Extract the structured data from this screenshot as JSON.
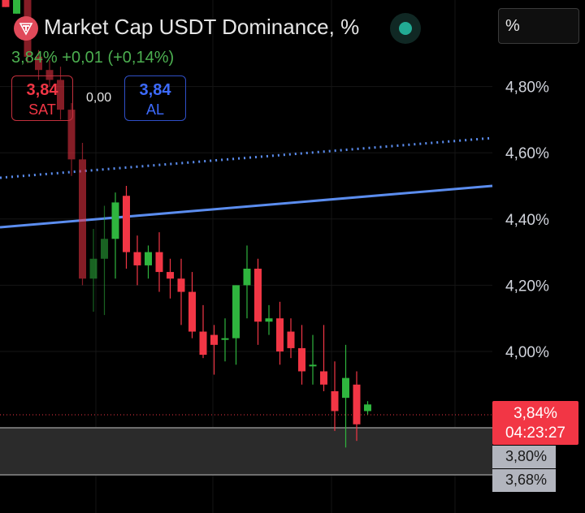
{
  "header": {
    "title": "Market Cap USDT Dominance, %",
    "last": "3,84%",
    "change": "+0,01",
    "change_pct": "(+0,14%)",
    "status_color": "#22ab94"
  },
  "trade": {
    "sell_value": "3,84",
    "sell_label": "SAT",
    "spread": "0,00",
    "buy_value": "3,84",
    "buy_label": "AL"
  },
  "axis": {
    "unit": "%"
  },
  "price_tag": {
    "value": "3,84%",
    "countdown": "04:23:27"
  },
  "range_tags": {
    "high": "3,80%",
    "low": "3,68%"
  },
  "chart_data": {
    "type": "candlestick",
    "y_ticks": [
      {
        "value": 4.8,
        "label": "4,80%"
      },
      {
        "value": 4.6,
        "label": "4,60%"
      },
      {
        "value": 4.4,
        "label": "4,40%"
      },
      {
        "value": 4.2,
        "label": "4,20%"
      },
      {
        "value": 4.0,
        "label": "4,00%"
      }
    ],
    "colors": {
      "up": "#2fb53e",
      "down": "#f23645",
      "trend": "#5b8def"
    },
    "current_price": 3.84,
    "highlight_zone": [
      3.68,
      3.8
    ],
    "candles": [
      {
        "o": 5.07,
        "h": 5.07,
        "l": 5.04,
        "c": 5.04
      },
      {
        "o": 5.02,
        "h": 5.07,
        "l": 5.02,
        "c": 5.07
      },
      {
        "o": 5.07,
        "h": 5.07,
        "l": 4.87,
        "c": 4.89
      },
      {
        "o": 4.89,
        "h": 4.91,
        "l": 4.82,
        "c": 4.85
      },
      {
        "o": 4.85,
        "h": 4.88,
        "l": 4.8,
        "c": 4.82
      },
      {
        "o": 4.82,
        "h": 4.86,
        "l": 4.7,
        "c": 4.73
      },
      {
        "o": 4.73,
        "h": 4.75,
        "l": 4.53,
        "c": 4.58
      },
      {
        "o": 4.58,
        "h": 4.63,
        "l": 4.2,
        "c": 4.22
      },
      {
        "o": 4.22,
        "h": 4.37,
        "l": 4.12,
        "c": 4.28
      },
      {
        "o": 4.28,
        "h": 4.44,
        "l": 4.11,
        "c": 4.34
      },
      {
        "o": 4.34,
        "h": 4.48,
        "l": 4.22,
        "c": 4.45
      },
      {
        "o": 4.47,
        "h": 4.5,
        "l": 4.25,
        "c": 4.3
      },
      {
        "o": 4.3,
        "h": 4.35,
        "l": 4.2,
        "c": 4.26
      },
      {
        "o": 4.26,
        "h": 4.32,
        "l": 4.22,
        "c": 4.3
      },
      {
        "o": 4.3,
        "h": 4.36,
        "l": 4.18,
        "c": 4.24
      },
      {
        "o": 4.24,
        "h": 4.28,
        "l": 4.16,
        "c": 4.22
      },
      {
        "o": 4.22,
        "h": 4.28,
        "l": 4.08,
        "c": 4.18
      },
      {
        "o": 4.18,
        "h": 4.24,
        "l": 4.04,
        "c": 4.06
      },
      {
        "o": 4.06,
        "h": 4.14,
        "l": 3.98,
        "c": 3.99
      },
      {
        "o": 4.05,
        "h": 4.08,
        "l": 3.93,
        "c": 4.02
      },
      {
        "o": 4.04,
        "h": 4.1,
        "l": 3.97,
        "c": 4.04
      },
      {
        "o": 4.04,
        "h": 4.2,
        "l": 3.96,
        "c": 4.2
      },
      {
        "o": 4.2,
        "h": 4.32,
        "l": 4.1,
        "c": 4.25
      },
      {
        "o": 4.25,
        "h": 4.28,
        "l": 4.02,
        "c": 4.09
      },
      {
        "o": 4.09,
        "h": 4.14,
        "l": 4.05,
        "c": 4.1
      },
      {
        "o": 4.1,
        "h": 4.15,
        "l": 3.96,
        "c": 4.0
      },
      {
        "o": 4.06,
        "h": 4.1,
        "l": 3.98,
        "c": 4.01
      },
      {
        "o": 4.01,
        "h": 4.08,
        "l": 3.9,
        "c": 3.94
      },
      {
        "o": 3.96,
        "h": 4.05,
        "l": 3.9,
        "c": 3.96
      },
      {
        "o": 3.94,
        "h": 4.08,
        "l": 3.88,
        "c": 3.9
      },
      {
        "o": 3.88,
        "h": 3.97,
        "l": 3.76,
        "c": 3.82
      },
      {
        "o": 3.86,
        "h": 4.02,
        "l": 3.71,
        "c": 3.92
      },
      {
        "o": 3.9,
        "h": 3.94,
        "l": 3.73,
        "c": 3.78
      },
      {
        "o": 3.82,
        "h": 3.85,
        "l": 3.81,
        "c": 3.84
      }
    ]
  }
}
